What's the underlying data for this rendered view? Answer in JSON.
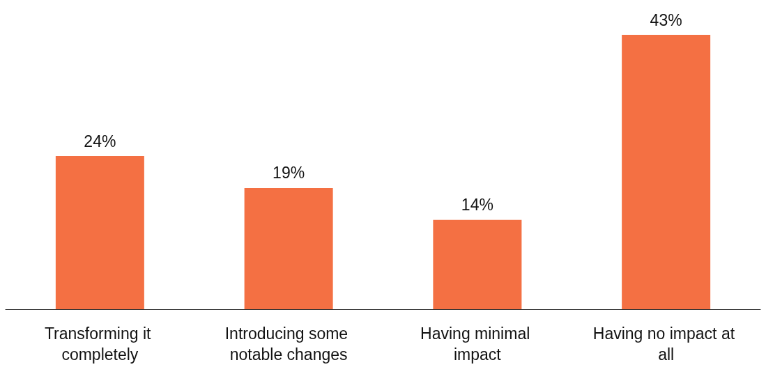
{
  "chart_data": {
    "type": "bar",
    "categories": [
      "Transforming it completely",
      "Introducing some notable changes",
      "Having minimal impact",
      "Having no impact at all"
    ],
    "values": [
      24,
      19,
      14,
      43
    ],
    "value_labels": [
      "24%",
      "19%",
      "14%",
      "43%"
    ],
    "color": "#f47043"
  }
}
